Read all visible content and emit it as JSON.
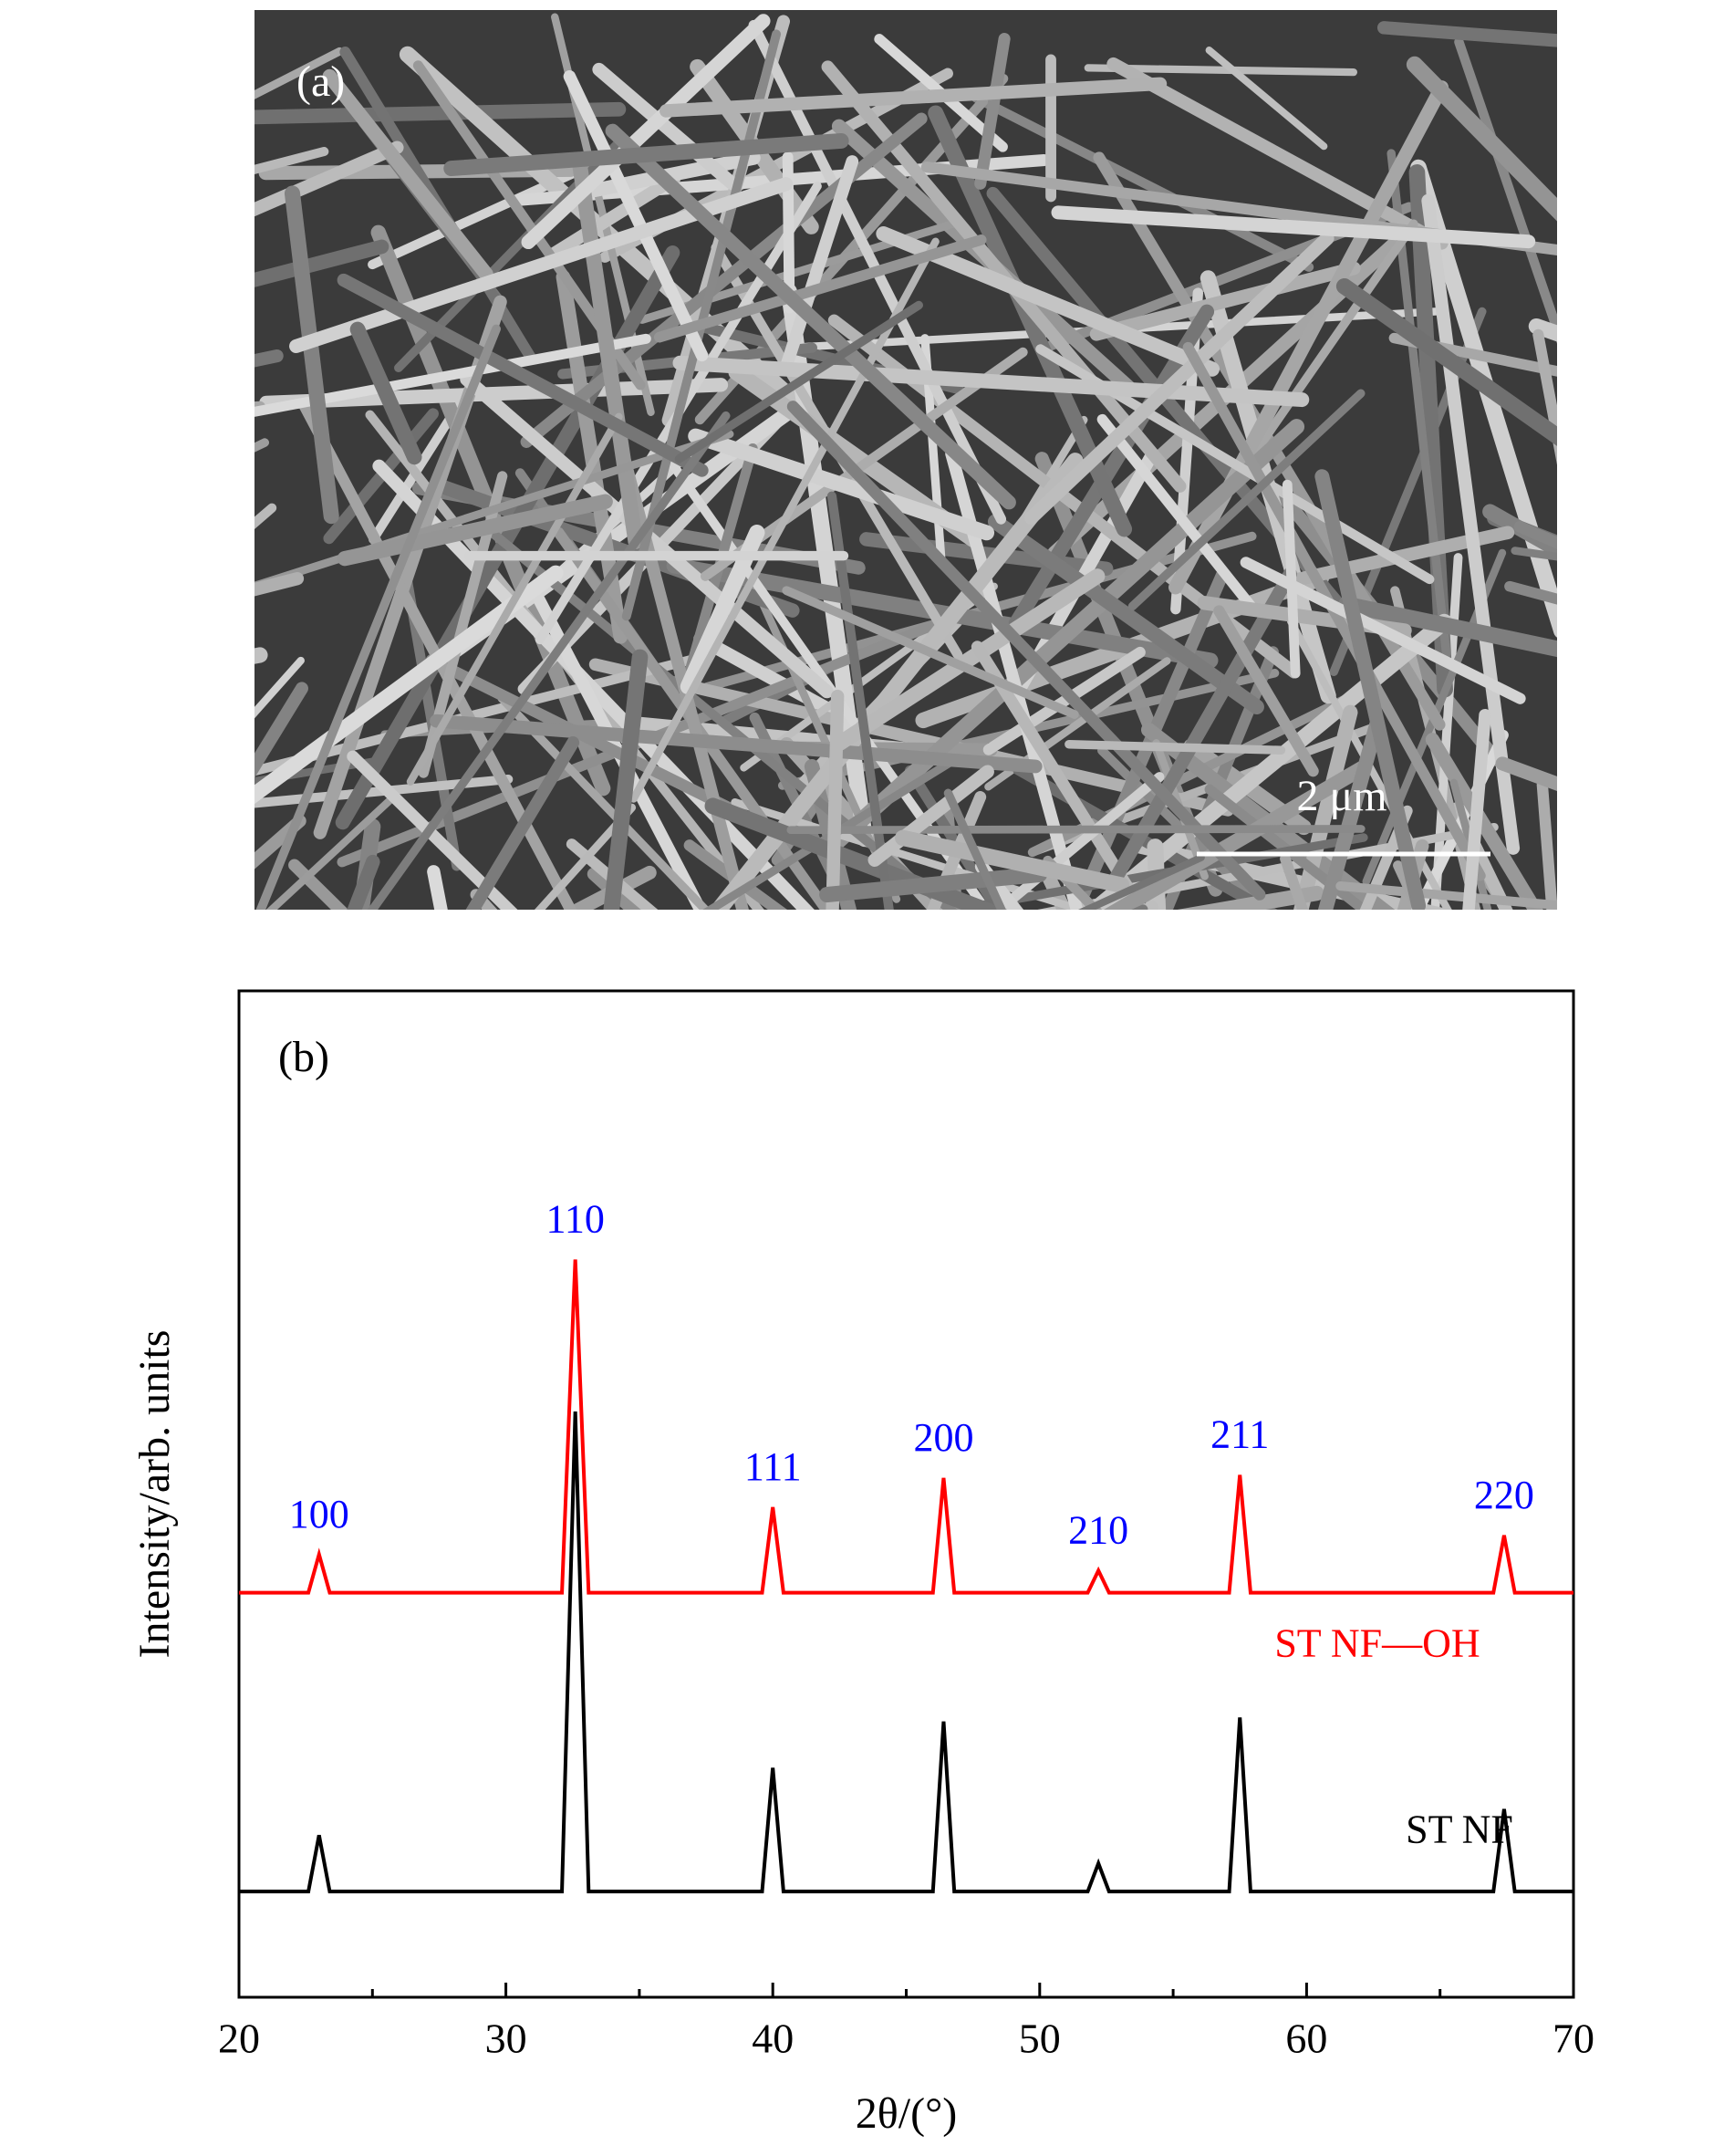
{
  "panel_a": {
    "label": "(a)",
    "scale_bar": "2 μm"
  },
  "chart_data": {
    "type": "line",
    "panel_label": "(b)",
    "xlabel": "2θ/(°)",
    "ylabel": "Intensity/arb. units",
    "xlim": [
      20,
      70
    ],
    "xticks": [
      20,
      30,
      40,
      50,
      60,
      70
    ],
    "xminorticks": [
      25,
      35,
      45,
      55,
      65
    ],
    "ylim": [
      0,
      100
    ],
    "x": [
      20,
      22.6,
      23.0,
      23.4,
      32.1,
      32.6,
      33.1,
      39.6,
      40.0,
      40.4,
      46.0,
      46.4,
      46.8,
      51.8,
      52.2,
      52.6,
      57.1,
      57.5,
      57.9,
      67.0,
      67.4,
      67.8,
      70
    ],
    "series": [
      {
        "name": "ST NF—OH",
        "color": "#ff0000",
        "values": [
          40.2,
          40.2,
          44.0,
          40.2,
          40.2,
          73.3,
          40.2,
          40.2,
          48.7,
          40.2,
          40.2,
          51.6,
          40.2,
          40.2,
          42.4,
          40.2,
          40.2,
          51.9,
          40.2,
          40.2,
          45.9,
          40.2,
          40.2
        ]
      },
      {
        "name": "ST NF",
        "color": "#000000",
        "values": [
          10.5,
          10.5,
          16.1,
          10.5,
          10.5,
          58.2,
          10.5,
          10.5,
          22.8,
          10.5,
          10.5,
          27.4,
          10.5,
          10.5,
          13.3,
          10.5,
          10.5,
          27.8,
          10.5,
          10.5,
          18.7,
          10.5,
          10.5
        ]
      }
    ],
    "annotation_color": "#0000ff",
    "annotations": [
      {
        "text": "100",
        "x": 23.0
      },
      {
        "text": "110",
        "x": 32.6
      },
      {
        "text": "111",
        "x": 40.0
      },
      {
        "text": "200",
        "x": 46.4
      },
      {
        "text": "210",
        "x": 52.2
      },
      {
        "text": "211",
        "x": 57.5
      },
      {
        "text": "220",
        "x": 67.4
      }
    ]
  }
}
